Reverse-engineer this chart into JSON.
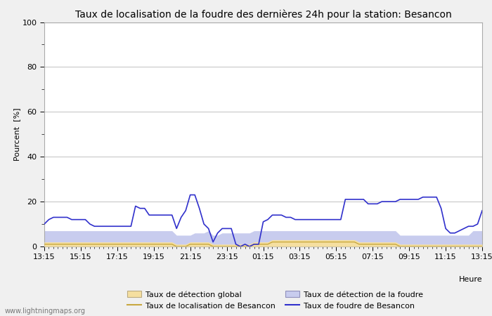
{
  "title": "Taux de localisation de la foudre des dernières 24h pour la station: Besancon",
  "xlabel": "Heure",
  "ylabel": "Pourcent  [%]",
  "ylim": [
    0,
    100
  ],
  "yticks": [
    0,
    20,
    40,
    60,
    80,
    100
  ],
  "xtick_labels": [
    "13:15",
    "15:15",
    "17:15",
    "19:15",
    "21:15",
    "23:15",
    "01:15",
    "03:15",
    "05:15",
    "07:15",
    "09:15",
    "11:15",
    "13:15"
  ],
  "watermark": "www.lightningmaps.org",
  "legend": [
    {
      "label": "Taux de détection global",
      "type": "fill",
      "color": "#f5dfa0",
      "edgecolor": "#c8a84b"
    },
    {
      "label": "Taux de localisation de Besancon",
      "type": "line",
      "color": "#c8a84b"
    },
    {
      "label": "Taux de détection de la foudre",
      "type": "fill",
      "color": "#c8cce8",
      "edgecolor": "#8080c0"
    },
    {
      "label": "Taux de foudre de Besancon",
      "type": "line",
      "color": "#2828cc"
    }
  ],
  "n_points": 97,
  "taux_detection_global": [
    2,
    2,
    2,
    2,
    2,
    2,
    2,
    2,
    2,
    2,
    2,
    2,
    2,
    2,
    2,
    2,
    2,
    2,
    2,
    2,
    2,
    2,
    2,
    2,
    2,
    2,
    2,
    2,
    2,
    1,
    1,
    1,
    2,
    2,
    2,
    2,
    2,
    1,
    1,
    1,
    1,
    1,
    1,
    1,
    1,
    1,
    2,
    2,
    2,
    2,
    3,
    3,
    3,
    3,
    3,
    3,
    3,
    3,
    3,
    3,
    3,
    3,
    3,
    3,
    3,
    3,
    3,
    3,
    3,
    2,
    2,
    2,
    2,
    2,
    2,
    2,
    2,
    2,
    1,
    1,
    1,
    1,
    1,
    1,
    1,
    1,
    1,
    1,
    1,
    1,
    1,
    1,
    1,
    1,
    1,
    1,
    1
  ],
  "taux_localisation_besancon": [
    1,
    1,
    1,
    1,
    1,
    1,
    1,
    1,
    1,
    1,
    1,
    1,
    1,
    1,
    1,
    1,
    1,
    1,
    1,
    1,
    1,
    1,
    1,
    1,
    1,
    1,
    1,
    1,
    1,
    0,
    0,
    0,
    1,
    1,
    1,
    1,
    1,
    0,
    0,
    0,
    0,
    0,
    0,
    0,
    0,
    0,
    1,
    1,
    1,
    1,
    2,
    2,
    2,
    2,
    2,
    2,
    2,
    2,
    2,
    2,
    2,
    2,
    2,
    2,
    2,
    2,
    2,
    2,
    2,
    1,
    1,
    1,
    1,
    1,
    1,
    1,
    1,
    1,
    0,
    0,
    0,
    0,
    0,
    0,
    0,
    0,
    0,
    0,
    0,
    0,
    0,
    0,
    0,
    0,
    0,
    0,
    0
  ],
  "taux_detection_foudre": [
    7,
    7,
    7,
    7,
    7,
    7,
    7,
    7,
    7,
    7,
    7,
    7,
    7,
    7,
    7,
    7,
    7,
    7,
    7,
    7,
    7,
    7,
    7,
    7,
    7,
    7,
    7,
    7,
    7,
    5,
    5,
    5,
    5,
    6,
    6,
    6,
    7,
    5,
    5,
    6,
    6,
    6,
    6,
    6,
    6,
    6,
    7,
    7,
    7,
    7,
    7,
    7,
    7,
    7,
    7,
    7,
    7,
    7,
    7,
    7,
    7,
    7,
    7,
    7,
    7,
    7,
    7,
    7,
    7,
    7,
    7,
    7,
    7,
    7,
    7,
    7,
    7,
    7,
    5,
    5,
    5,
    5,
    5,
    5,
    5,
    5,
    5,
    5,
    5,
    5,
    5,
    5,
    5,
    5,
    7,
    7,
    7
  ],
  "taux_foudre_besancon": [
    10,
    12,
    13,
    13,
    13,
    13,
    12,
    12,
    12,
    12,
    10,
    9,
    9,
    9,
    9,
    9,
    9,
    9,
    9,
    9,
    18,
    17,
    17,
    14,
    14,
    14,
    14,
    14,
    14,
    8,
    13,
    16,
    23,
    23,
    17,
    10,
    8,
    2,
    6,
    8,
    8,
    8,
    1,
    0,
    1,
    0,
    1,
    1,
    11,
    12,
    14,
    14,
    14,
    13,
    13,
    12,
    12,
    12,
    12,
    12,
    12,
    12,
    12,
    12,
    12,
    12,
    21,
    21,
    21,
    21,
    21,
    19,
    19,
    19,
    20,
    20,
    20,
    20,
    21,
    21,
    21,
    21,
    21,
    22,
    22,
    22,
    22,
    17,
    8,
    6,
    6,
    7,
    8,
    9,
    9,
    10,
    16
  ],
  "bg_color": "#f0f0f0",
  "plot_bg_color": "#ffffff",
  "grid_color": "#c8c8c8",
  "title_fontsize": 10,
  "axis_fontsize": 8,
  "tick_fontsize": 8,
  "fill_global_color": "#f5dfa0",
  "fill_global_edge": "#c8a870",
  "fill_foudre_color": "#c8ccee",
  "fill_foudre_edge": "#9090c8",
  "line_localisation_color": "#c8a840",
  "line_foudre_color": "#3030cc"
}
